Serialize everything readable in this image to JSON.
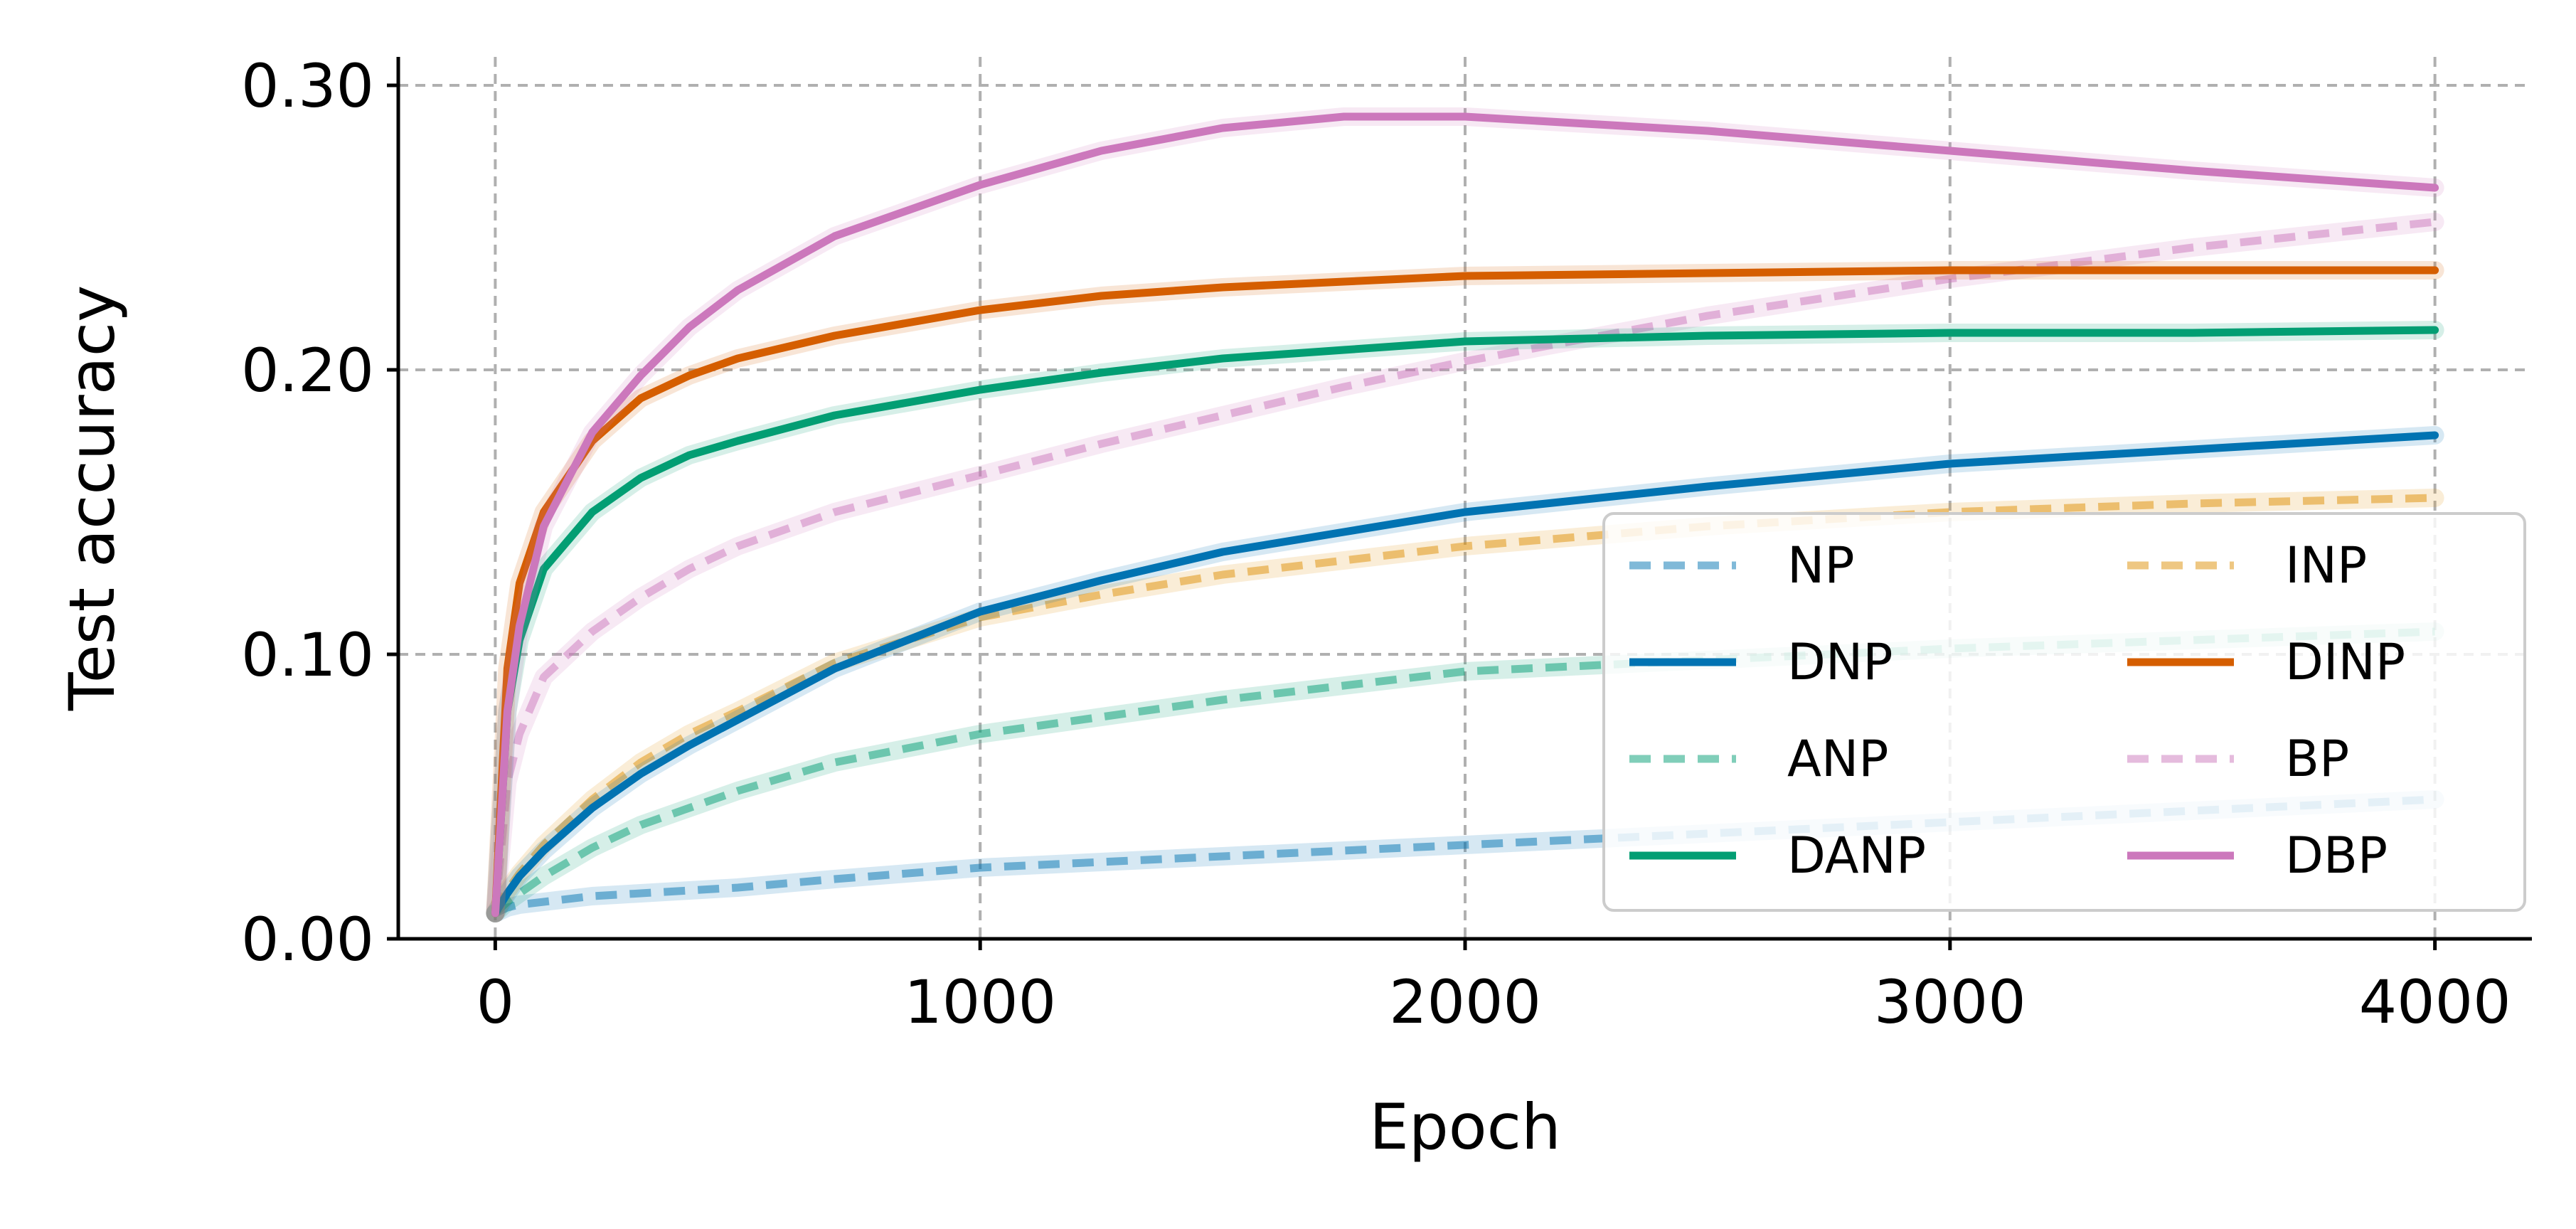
{
  "chart_data": {
    "type": "line",
    "title": "",
    "xlabel": "Epoch",
    "ylabel": "Test accuracy",
    "xlim": [
      -200,
      4200
    ],
    "ylim": [
      0.0,
      0.31
    ],
    "xticks": [
      0,
      1000,
      2000,
      3000,
      4000
    ],
    "xtick_labels": [
      "0",
      "1000",
      "2000",
      "3000",
      "4000"
    ],
    "yticks": [
      0.0,
      0.1,
      0.2,
      0.3
    ],
    "ytick_labels": [
      "0.00",
      "0.10",
      "0.20",
      "0.30"
    ],
    "grid": true,
    "legend_position": "lower-right",
    "legend_columns": 2,
    "x": [
      0,
      25,
      50,
      100,
      200,
      300,
      400,
      500,
      700,
      1000,
      1250,
      1500,
      1750,
      2000,
      2500,
      3000,
      3500,
      4000
    ],
    "series": [
      {
        "name": "NP",
        "color": "#0173b2",
        "style": "dashed",
        "alpha": 0.5,
        "values": [
          0.009,
          0.011,
          0.012,
          0.013,
          0.015,
          0.016,
          0.017,
          0.018,
          0.021,
          0.025,
          0.027,
          0.029,
          0.031,
          0.033,
          0.037,
          0.041,
          0.045,
          0.049
        ]
      },
      {
        "name": "DNP",
        "color": "#0173b2",
        "style": "solid",
        "alpha": 1.0,
        "values": [
          0.009,
          0.016,
          0.022,
          0.031,
          0.046,
          0.058,
          0.068,
          0.077,
          0.095,
          0.115,
          0.126,
          0.136,
          0.143,
          0.15,
          0.159,
          0.167,
          0.172,
          0.177
        ]
      },
      {
        "name": "ANP",
        "color": "#029e73",
        "style": "dashed",
        "alpha": 0.5,
        "values": [
          0.009,
          0.013,
          0.016,
          0.022,
          0.032,
          0.04,
          0.046,
          0.052,
          0.062,
          0.072,
          0.078,
          0.084,
          0.089,
          0.094,
          0.098,
          0.102,
          0.105,
          0.108
        ]
      },
      {
        "name": "DANP",
        "color": "#029e73",
        "style": "solid",
        "alpha": 1.0,
        "values": [
          0.009,
          0.08,
          0.105,
          0.13,
          0.15,
          0.162,
          0.17,
          0.175,
          0.184,
          0.193,
          0.199,
          0.204,
          0.207,
          0.21,
          0.212,
          0.213,
          0.213,
          0.214
        ]
      },
      {
        "name": "INP",
        "color": "#de8f05",
        "style": "dashed",
        "alpha": 0.5,
        "values": [
          0.009,
          0.017,
          0.023,
          0.033,
          0.049,
          0.062,
          0.072,
          0.08,
          0.097,
          0.113,
          0.121,
          0.128,
          0.133,
          0.138,
          0.145,
          0.15,
          0.153,
          0.155
        ]
      },
      {
        "name": "DINP",
        "color": "#d55e00",
        "style": "solid",
        "alpha": 1.0,
        "values": [
          0.009,
          0.095,
          0.125,
          0.15,
          0.175,
          0.19,
          0.198,
          0.204,
          0.212,
          0.221,
          0.226,
          0.229,
          0.231,
          0.233,
          0.234,
          0.235,
          0.235,
          0.235
        ]
      },
      {
        "name": "BP",
        "color": "#cc78bc",
        "style": "dashed",
        "alpha": 0.5,
        "values": [
          0.009,
          0.055,
          0.072,
          0.092,
          0.108,
          0.12,
          0.13,
          0.138,
          0.15,
          0.163,
          0.174,
          0.184,
          0.194,
          0.203,
          0.219,
          0.232,
          0.243,
          0.252
        ]
      },
      {
        "name": "DBP",
        "color": "#cc78bc",
        "style": "solid",
        "alpha": 1.0,
        "values": [
          0.009,
          0.08,
          0.11,
          0.145,
          0.178,
          0.198,
          0.215,
          0.228,
          0.247,
          0.265,
          0.277,
          0.285,
          0.289,
          0.289,
          0.284,
          0.277,
          0.27,
          0.264
        ]
      }
    ]
  }
}
